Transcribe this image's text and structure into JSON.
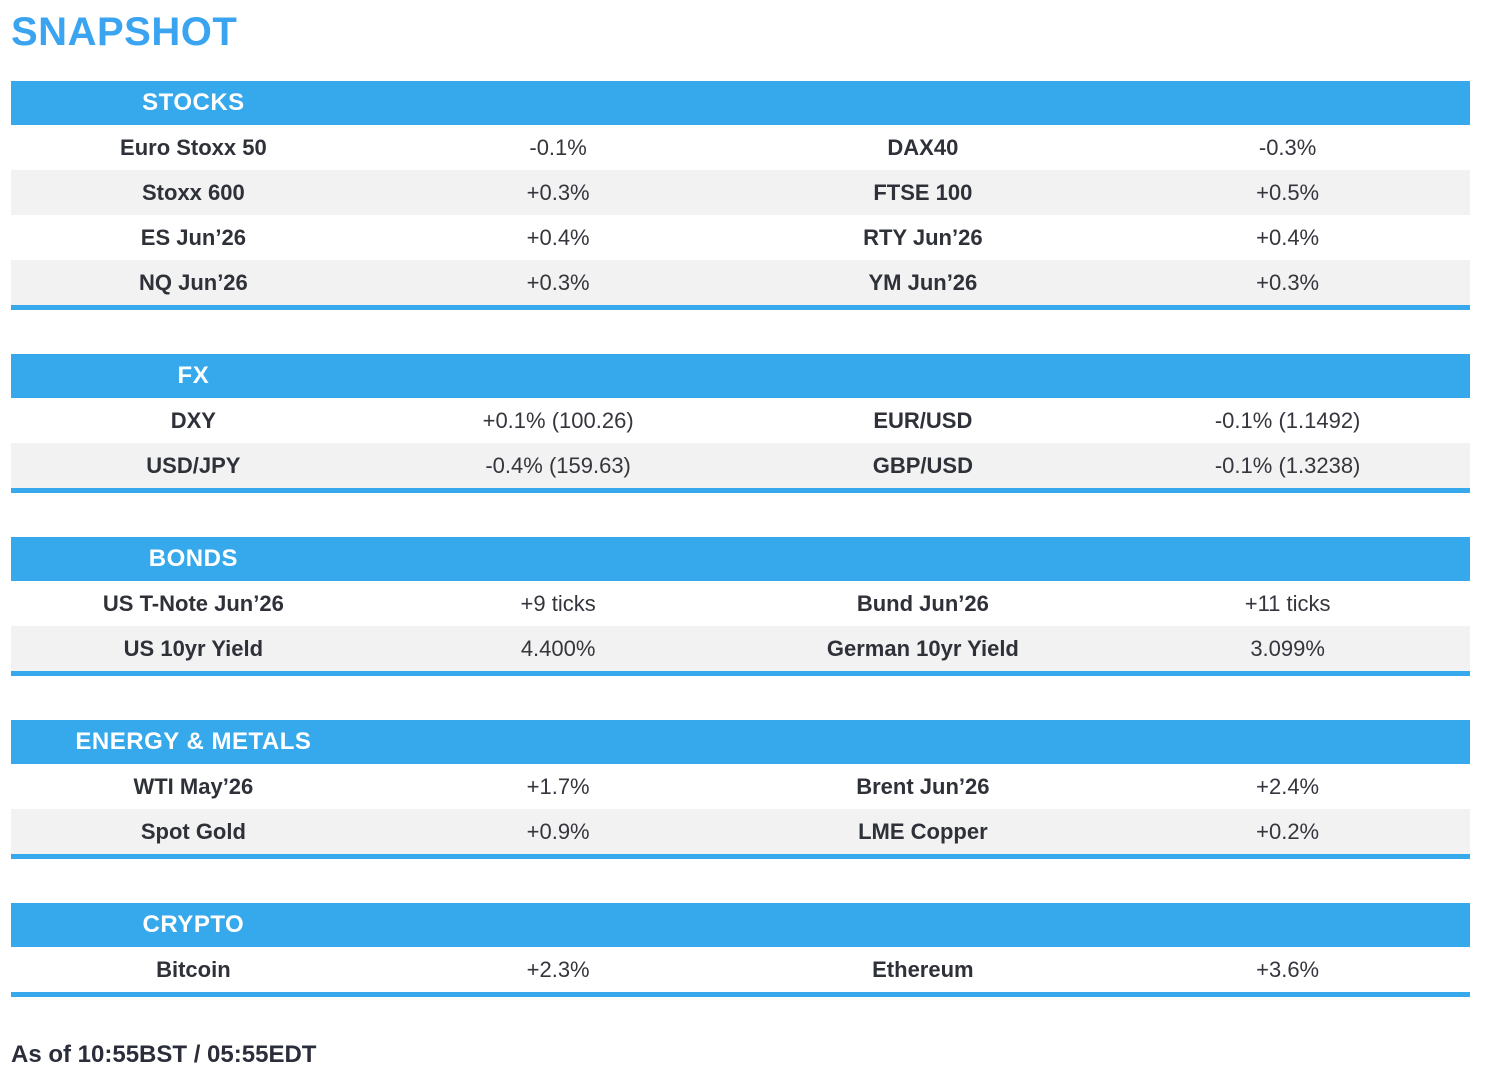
{
  "page": {
    "title": "SNAPSHOT",
    "footer": "As of 10:55BST / 05:55EDT"
  },
  "colors": {
    "accent_blue": "#35a9ec",
    "title_blue": "#3ba4f0",
    "row_stripe": "#f2f2f2",
    "label_text": "#2e3138",
    "value_text": "#35363d",
    "header_text": "#ffffff"
  },
  "sections": [
    {
      "name": "STOCKS",
      "rows": [
        {
          "left_label": "Euro Stoxx 50",
          "left_value": "-0.1%",
          "right_label": "DAX40",
          "right_value": "-0.3%"
        },
        {
          "left_label": "Stoxx 600",
          "left_value": "+0.3%",
          "right_label": "FTSE 100",
          "right_value": "+0.5%"
        },
        {
          "left_label": "ES Jun’26",
          "left_value": "+0.4%",
          "right_label": "RTY Jun’26",
          "right_value": "+0.4%"
        },
        {
          "left_label": "NQ Jun’26",
          "left_value": "+0.3%",
          "right_label": "YM Jun’26",
          "right_value": "+0.3%"
        }
      ]
    },
    {
      "name": "FX",
      "rows": [
        {
          "left_label": "DXY",
          "left_value": "+0.1% (100.26)",
          "right_label": "EUR/USD",
          "right_value": "-0.1% (1.1492)"
        },
        {
          "left_label": "USD/JPY",
          "left_value": "-0.4% (159.63)",
          "right_label": "GBP/USD",
          "right_value": "-0.1% (1.3238)"
        }
      ]
    },
    {
      "name": "BONDS",
      "rows": [
        {
          "left_label": "US T-Note Jun’26",
          "left_value": "+9 ticks",
          "right_label": "Bund Jun’26",
          "right_value": "+11 ticks"
        },
        {
          "left_label": "US 10yr Yield",
          "left_value": "4.400%",
          "right_label": "German 10yr Yield",
          "right_value": "3.099%"
        }
      ]
    },
    {
      "name": "ENERGY & METALS",
      "rows": [
        {
          "left_label": "WTI May’26",
          "left_value": "+1.7%",
          "right_label": "Brent Jun’26",
          "right_value": "+2.4%"
        },
        {
          "left_label": "Spot Gold",
          "left_value": "+0.9%",
          "right_label": "LME Copper",
          "right_value": "+0.2%"
        }
      ]
    },
    {
      "name": "CRYPTO",
      "rows": [
        {
          "left_label": "Bitcoin",
          "left_value": "+2.3%",
          "right_label": "Ethereum",
          "right_value": "+3.6%"
        }
      ]
    }
  ]
}
